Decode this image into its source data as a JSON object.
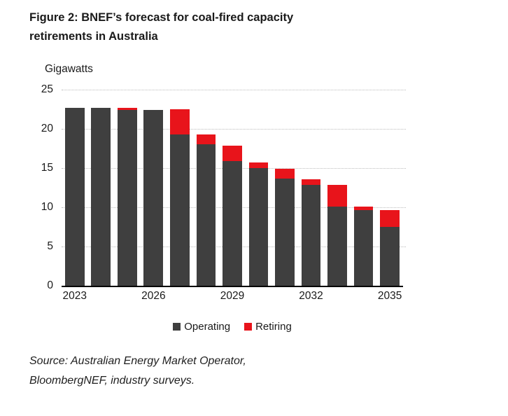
{
  "title": {
    "line1": "Figure 2: BNEF’s forecast for coal-fired capacity",
    "line2": "retirements in Australia"
  },
  "axis_unit": "Gigawatts",
  "chart_data": {
    "type": "bar",
    "stacked": true,
    "title": "Figure 2: BNEF’s forecast for coal-fired capacity retirements in Australia",
    "ylabel": "Gigawatts",
    "xlabel": "",
    "categories": [
      2023,
      2024,
      2025,
      2026,
      2027,
      2028,
      2029,
      2030,
      2031,
      2032,
      2033,
      2034,
      2035
    ],
    "x_tick_every": 3,
    "x_tick_labels": [
      "2023",
      "2026",
      "2029",
      "2032",
      "2035"
    ],
    "series": [
      {
        "name": "Operating",
        "color": "#3f3f3f",
        "values": [
          22.7,
          22.7,
          22.4,
          22.4,
          19.3,
          18.0,
          15.9,
          15.0,
          13.7,
          12.9,
          10.1,
          9.6,
          7.5
        ]
      },
      {
        "name": "Retiring",
        "color": "#e8141b",
        "values": [
          0,
          0,
          0.3,
          0,
          3.2,
          1.3,
          2.0,
          0.7,
          1.2,
          0.7,
          2.8,
          0.5,
          2.1
        ]
      }
    ],
    "ylim": [
      0,
      25
    ],
    "yticks": [
      0,
      5,
      10,
      15,
      20,
      25
    ],
    "grid": true,
    "gridline_style": "dotted",
    "legend_position": "bottom"
  },
  "source": {
    "line1": "Source: Australian Energy Market Operator,",
    "line2": "BloombergNEF, industry surveys."
  }
}
